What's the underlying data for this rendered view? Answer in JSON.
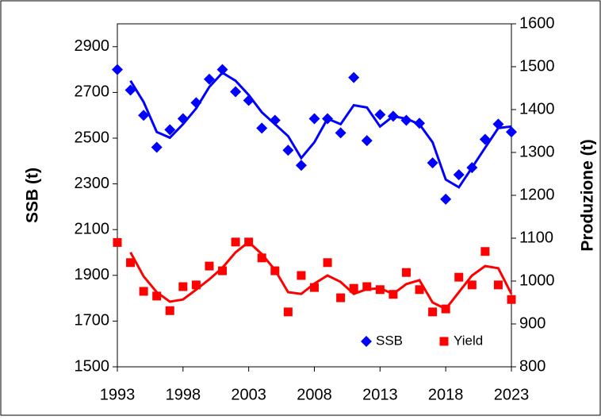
{
  "chart_data": {
    "type": "scatter",
    "x": [
      1993,
      1994,
      1995,
      1996,
      1997,
      1998,
      1999,
      2000,
      2001,
      2002,
      2003,
      2004,
      2005,
      2006,
      2007,
      2008,
      2009,
      2010,
      2011,
      2012,
      2013,
      2014,
      2015,
      2016,
      2017,
      2018,
      2019,
      2020,
      2021,
      2022,
      2023
    ],
    "series": [
      {
        "name": "SSB",
        "color": "#0000ff",
        "marker": "diamond",
        "values": [
          2800,
          2710,
          2600,
          2460,
          2537,
          2585,
          2655,
          2758,
          2800,
          2703,
          2665,
          2544,
          2578,
          2447,
          2381,
          2585,
          2585,
          2523,
          2765,
          2489,
          2603,
          2596,
          2578,
          2565,
          2392,
          2233,
          2340,
          2371,
          2495,
          2561,
          2527
        ],
        "trend": [
          null,
          2751,
          2658,
          2527,
          2502,
          2561,
          2630,
          2724,
          2786,
          2751,
          2689,
          2613,
          2561,
          2509,
          2413,
          2482,
          2585,
          2561,
          2644,
          2634,
          2551,
          2596,
          2585,
          2561,
          2482,
          2319,
          2285,
          2371,
          2458,
          2544,
          2551
        ]
      },
      {
        "name": "Yield",
        "color": "#ff0000",
        "marker": "square",
        "axis": "y2",
        "values": [
          1090,
          1043,
          976,
          965,
          931,
          987,
          991,
          1035,
          1024,
          1091,
          1091,
          1054,
          1024,
          928,
          1013,
          985,
          1043,
          961,
          983,
          987,
          980,
          969,
          1020,
          980,
          928,
          935,
          1009,
          991,
          1069,
          991,
          957
        ],
        "trend": [
          null,
          1067,
          1011,
          974,
          952,
          957,
          980,
          1004,
          1031,
          1067,
          1091,
          1063,
          1026,
          974,
          970,
          994,
          1013,
          998,
          970,
          981,
          983,
          970,
          993,
          1002,
          950,
          935,
          974,
          1013,
          1035,
          1030,
          970
        ]
      }
    ],
    "xlim": [
      1993,
      2023
    ],
    "xticks": [
      1993,
      1998,
      2003,
      2008,
      2013,
      2018,
      2023
    ],
    "ylim": [
      1500,
      3000
    ],
    "yticks": [
      1500,
      1700,
      1900,
      2100,
      2300,
      2500,
      2700,
      2900
    ],
    "y2lim": [
      800,
      1600
    ],
    "y2ticks": [
      800,
      900,
      1000,
      1100,
      1200,
      1300,
      1400,
      1500,
      1600
    ],
    "ylabel": "SSB (t)",
    "y2label": "Produzione (t)",
    "legend": "lower right"
  }
}
